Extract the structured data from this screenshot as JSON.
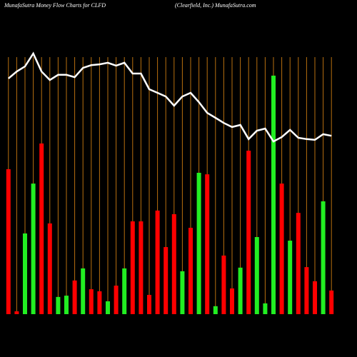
{
  "chart_data": {
    "type": "bar",
    "title": "MunafaSutra  Money Flow  Charts for CLFD",
    "subtitle": "(Clearfield, Inc.) MunafaSutra.com",
    "categories": [
      null,
      null,
      null,
      null,
      null,
      null,
      null,
      null,
      null,
      null,
      null,
      null,
      null,
      null,
      null,
      null,
      null,
      null,
      null,
      null,
      null,
      null,
      null,
      null,
      null,
      null,
      null,
      null,
      null,
      null,
      null,
      null,
      null,
      null,
      null,
      null,
      null,
      null,
      null,
      null
    ],
    "values": [
      56.4,
      1.1,
      31.4,
      50.8,
      66.4,
      35.3,
      6.7,
      7.2,
      13.1,
      17.8,
      9.7,
      8.9,
      5,
      11.1,
      17.8,
      36.1,
      36.1,
      7.5,
      40.3,
      26.1,
      38.9,
      16.7,
      33.6,
      55,
      54.4,
      3.1,
      22.8,
      10,
      18.1,
      63.6,
      30,
      4.2,
      92.8,
      50.8,
      28.6,
      39.4,
      18.3,
      12.8,
      43.9,
      9.2
    ],
    "colors": [
      "#ff0000",
      "#ff0000",
      "#22ee22",
      "#22ee22",
      "#ff0000",
      "#ff0000",
      "#22ee22",
      "#22ee22",
      "#ff0000",
      "#22ee22",
      "#ff0000",
      "#ff0000",
      "#22ee22",
      "#ff0000",
      "#22ee22",
      "#ff0000",
      "#ff0000",
      "#ff0000",
      "#ff0000",
      "#ff0000",
      "#ff0000",
      "#22ee22",
      "#ff0000",
      "#22ee22",
      "#ff0000",
      "#22ee22",
      "#ff0000",
      "#ff0000",
      "#22ee22",
      "#ff0000",
      "#22ee22",
      "#22ee22",
      "#22ee22",
      "#ff0000",
      "#22ee22",
      "#ff0000",
      "#ff0000",
      "#ff0000",
      "#22ee22",
      "#ff0000"
    ],
    "line": {
      "color": "#ffffff",
      "values": [
        91.7,
        94.4,
        96.4,
        101.4,
        94.4,
        91.1,
        93.1,
        93.1,
        92.2,
        95.8,
        96.9,
        97.2,
        97.8,
        96.7,
        97.8,
        93.6,
        93.6,
        87.5,
        86.1,
        84.7,
        81.1,
        84.7,
        86.1,
        82.5,
        78.3,
        76.4,
        74.4,
        72.8,
        73.6,
        68.1,
        71.4,
        72.2,
        67.2,
        68.9,
        71.7,
        68.6,
        68.1,
        67.8,
        70,
        69.4
      ]
    },
    "ylim": [
      0,
      105
    ],
    "grid": true,
    "grid_color": "#b8700f"
  }
}
